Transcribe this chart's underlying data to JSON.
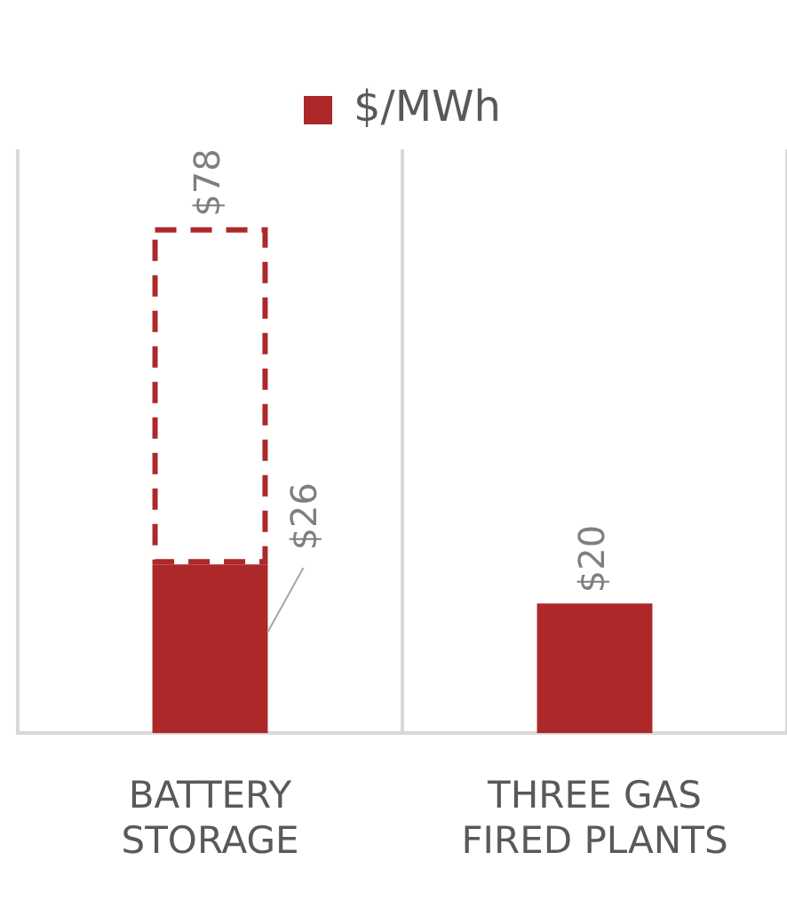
{
  "chart_data": {
    "type": "bar",
    "categories": [
      "BATTERY STORAGE",
      "THREE GAS FIRED PLANTS"
    ],
    "series": [
      {
        "name": "$/MWh",
        "color": "#ad2829",
        "values": [
          26,
          20
        ],
        "value_labels": [
          "$26",
          "$20"
        ]
      },
      {
        "color": "#ad2829",
        "values": [
          52,
          null
        ],
        "line_style": "dashed"
      }
    ],
    "stacked": true,
    "totals": [
      "$78",
      null
    ],
    "ylim": [
      0,
      90
    ],
    "tick_labels": "x",
    "grid": "x",
    "legend": "top"
  }
}
